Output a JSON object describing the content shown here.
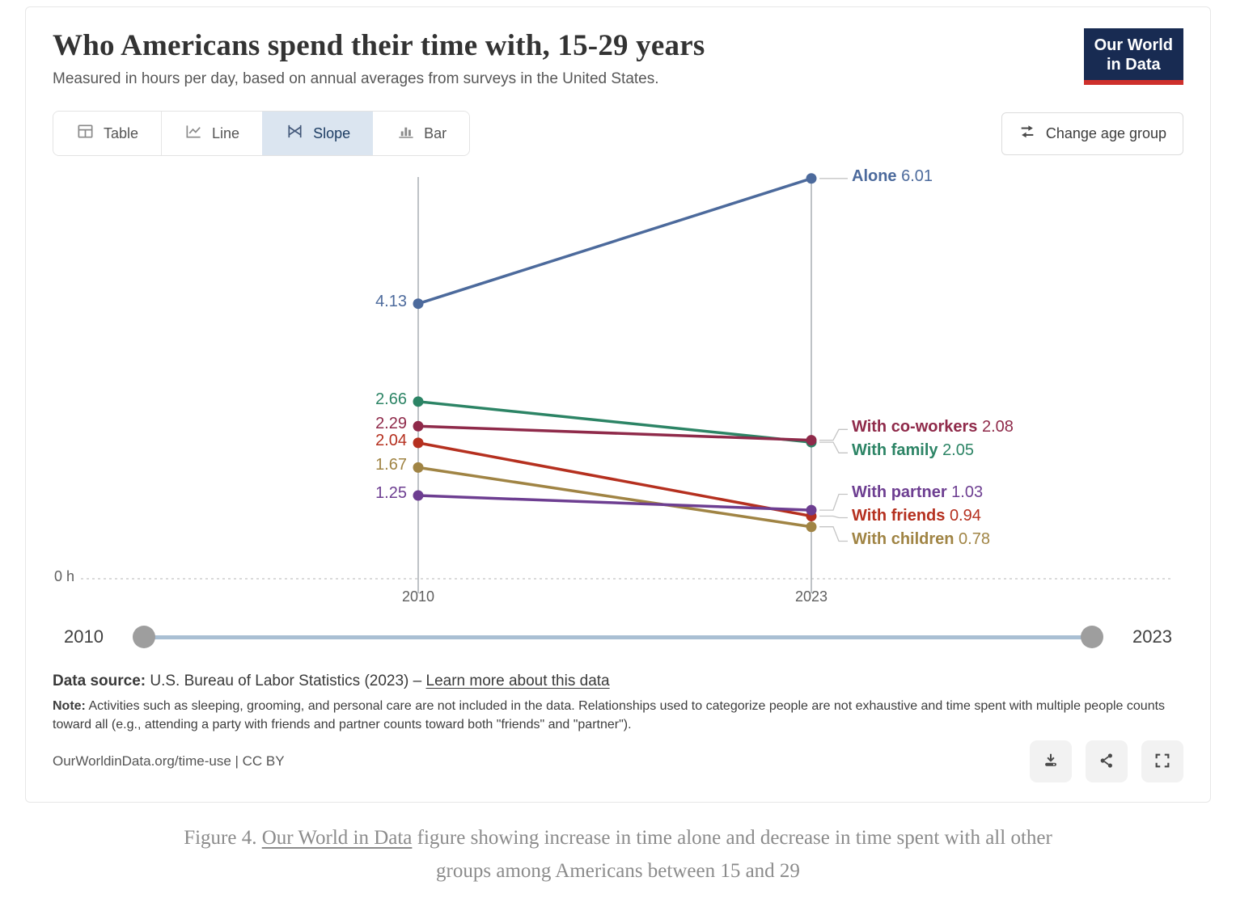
{
  "header": {
    "title": "Who Americans spend their time with, 15-29 years",
    "subtitle": "Measured in hours per day, based on annual averages from surveys in the United States.",
    "logo_line1": "Our World",
    "logo_line2": "in Data"
  },
  "toolbar": {
    "tabs": [
      {
        "label": "Table"
      },
      {
        "label": "Line"
      },
      {
        "label": "Slope",
        "active": true
      },
      {
        "label": "Bar"
      }
    ],
    "change_age_group": "Change age group"
  },
  "chart_data": {
    "type": "line",
    "subtype": "slope",
    "x": [
      2010,
      2023
    ],
    "x_tick_labels": [
      "2010",
      "2023"
    ],
    "y_zero_label": "0 h",
    "ylim": [
      0,
      6.2
    ],
    "series": [
      {
        "name": "Alone",
        "values": [
          4.13,
          6.01
        ],
        "color": "#4C6A9C"
      },
      {
        "name": "With family",
        "values": [
          2.66,
          2.05
        ],
        "color": "#2C8465"
      },
      {
        "name": "With co-workers",
        "values": [
          2.29,
          2.08
        ],
        "color": "#8F2A4A"
      },
      {
        "name": "With friends",
        "values": [
          2.04,
          0.94
        ],
        "color": "#B5301F"
      },
      {
        "name": "With children",
        "values": [
          1.67,
          0.78
        ],
        "color": "#A08444"
      },
      {
        "name": "With partner",
        "values": [
          1.25,
          1.03
        ],
        "color": "#6D3E91"
      }
    ]
  },
  "slider": {
    "start_label": "2010",
    "end_label": "2023"
  },
  "footer": {
    "source_prefix": "Data source:",
    "source_text": " U.S. Bureau of Labor Statistics (2023) – ",
    "source_link": "Learn more about this data",
    "note_prefix": "Note:",
    "note_text": " Activities such as sleeping, grooming, and personal care are not included in the data. Relationships used to categorize people are not exhaustive and time spent with multiple people counts toward all (e.g., attending a party with friends and partner counts toward both \"friends\" and \"partner\").",
    "cc_text": "OurWorldinData.org/time-use | CC BY"
  },
  "caption": {
    "prefix": "Figure 4. ",
    "link": "Our World in Data",
    "suffix": " figure showing increase in time alone and decrease in time spent with all other groups among Americans between 15 and 29"
  }
}
